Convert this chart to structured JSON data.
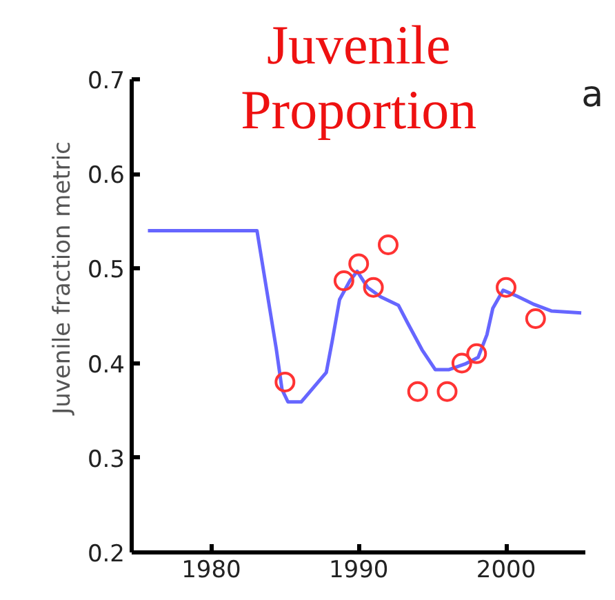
{
  "chart_data": {
    "type": "line",
    "title": "Juvenile Proportion",
    "ylabel": "Juvenile fraction metric",
    "annotations": [
      "a"
    ],
    "xlim": [
      1974.6,
      2005.4
    ],
    "ylim": [
      0.2,
      0.7
    ],
    "xticks": [
      1980,
      1990,
      2000
    ],
    "yticks": [
      0.2,
      0.3,
      0.4,
      0.5,
      0.6,
      0.7
    ],
    "grid": false,
    "series": [
      {
        "type": "line",
        "color": "#6666ff",
        "marker": "none",
        "line_style": "solid",
        "x": [
          1975.7,
          1983.1,
          1984.4,
          1984.8,
          1985.2,
          1986.1,
          1987.8,
          1988.2,
          1988.7,
          1989.4,
          1989.9,
          1990.6,
          1991.5,
          1992.7,
          1993.3,
          1994.3,
          1995.2,
          1996.1,
          1997.2,
          1998.1,
          1998.7,
          1999.1,
          1999.8,
          2000.7,
          2001.9,
          2003.1,
          2005.1
        ],
        "values": [
          0.54,
          0.54,
          0.416,
          0.372,
          0.359,
          0.359,
          0.39,
          0.423,
          0.467,
          0.487,
          0.497,
          0.48,
          0.47,
          0.461,
          0.443,
          0.414,
          0.393,
          0.393,
          0.399,
          0.406,
          0.43,
          0.458,
          0.477,
          0.471,
          0.462,
          0.455,
          0.453
        ]
      },
      {
        "type": "scatter",
        "color": "#ff3333",
        "marker": "circle",
        "x": [
          1985,
          1989,
          1990,
          1991,
          1992,
          1994,
          1996,
          1997,
          1998,
          2000,
          2002
        ],
        "values": [
          0.38,
          0.487,
          0.505,
          0.48,
          0.525,
          0.37,
          0.37,
          0.4,
          0.41,
          0.48,
          0.447
        ]
      }
    ]
  }
}
